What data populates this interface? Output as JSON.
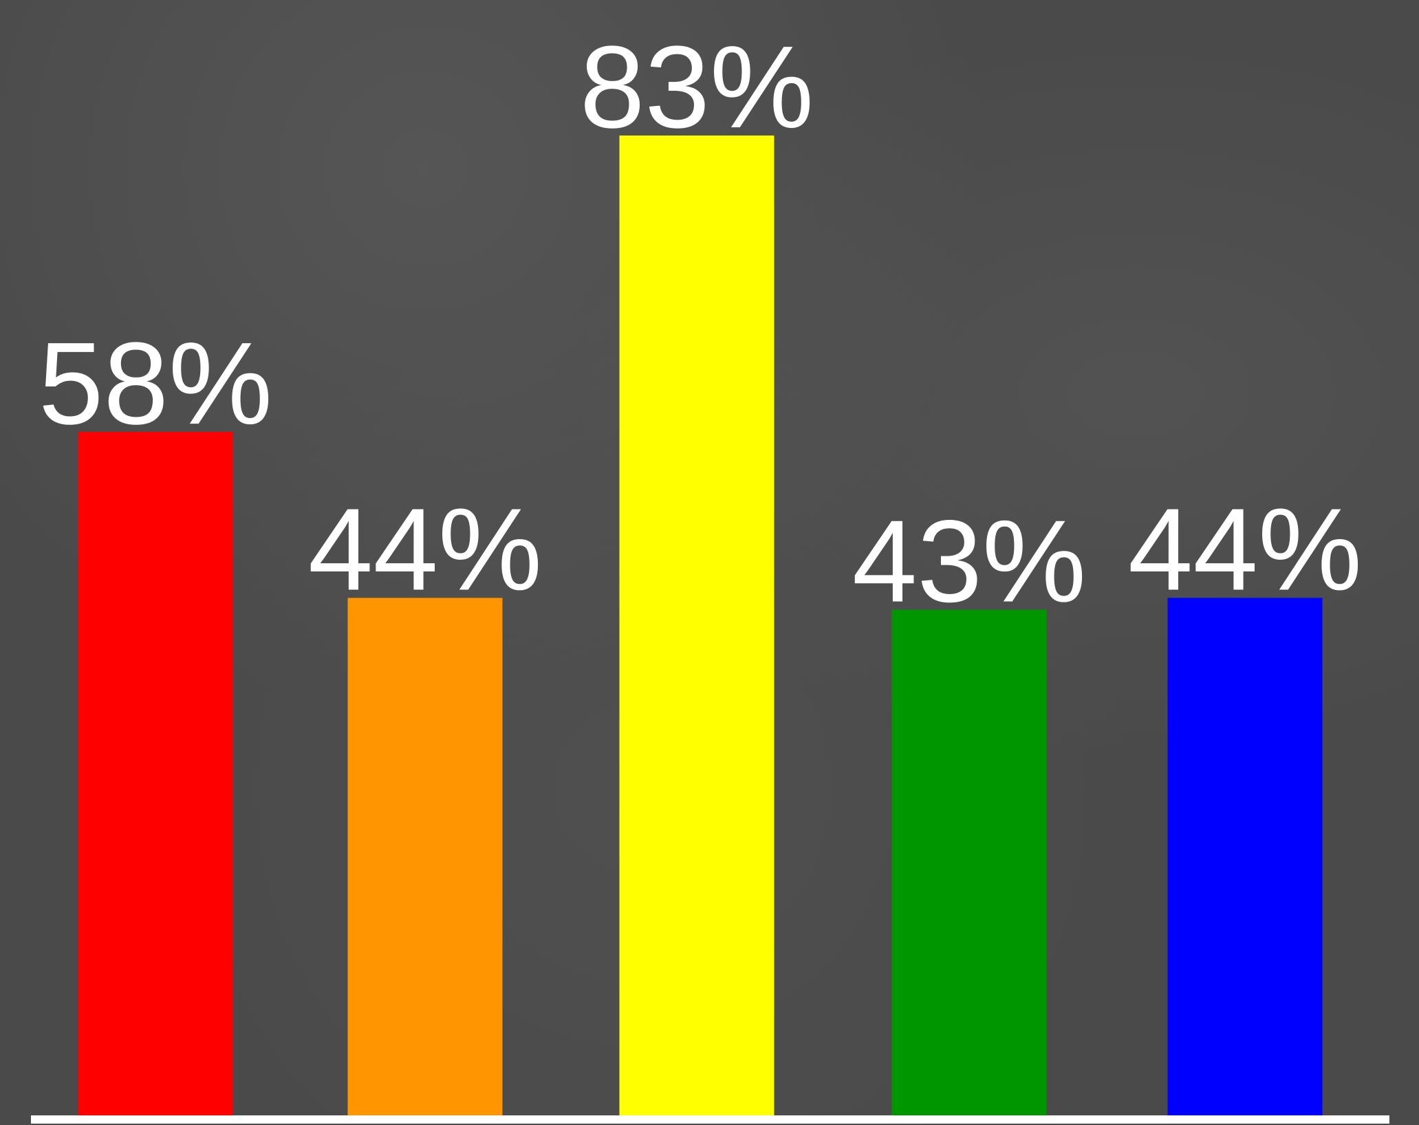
{
  "chart_data": {
    "type": "bar",
    "categories": [
      "",
      "",
      "",
      "",
      ""
    ],
    "values": [
      58,
      44,
      83,
      43,
      44
    ],
    "labels": [
      "58%",
      "44%",
      "83%",
      "43%",
      "44%"
    ],
    "colors": [
      "#ff0000",
      "#ff9500",
      "#ffff00",
      "#009600",
      "#0000ff"
    ],
    "title": "",
    "xlabel": "",
    "ylabel": "",
    "ylim": [
      0,
      100
    ],
    "grid": false,
    "legend": "none",
    "value_labels": "above-bars",
    "background_color": "#4a4a4a",
    "label_color": "#ffffff",
    "axis_color": "#ffffff"
  }
}
